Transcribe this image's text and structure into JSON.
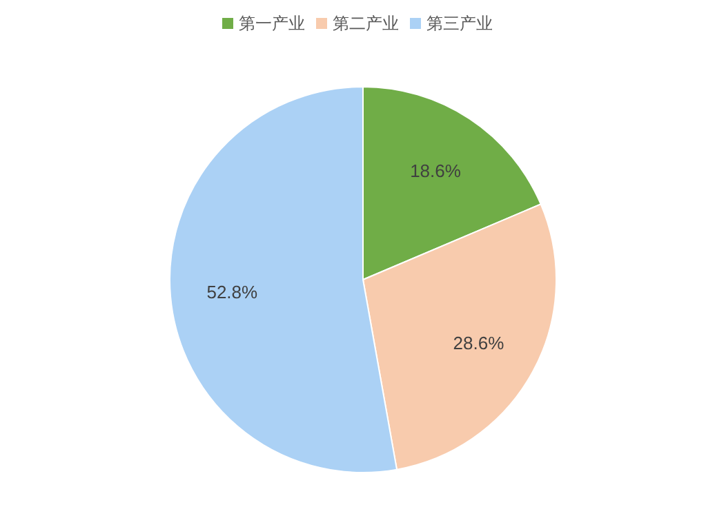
{
  "chart_data": {
    "type": "pie",
    "categories": [
      "第一产业",
      "第二产业",
      "第三产业"
    ],
    "values": [
      18.6,
      28.6,
      52.8
    ],
    "colors": [
      "#70ad47",
      "#f8cbad",
      "#abd1f5"
    ],
    "value_labels": [
      "18.6%",
      "28.6%",
      "52.8%"
    ],
    "legend": "top"
  }
}
